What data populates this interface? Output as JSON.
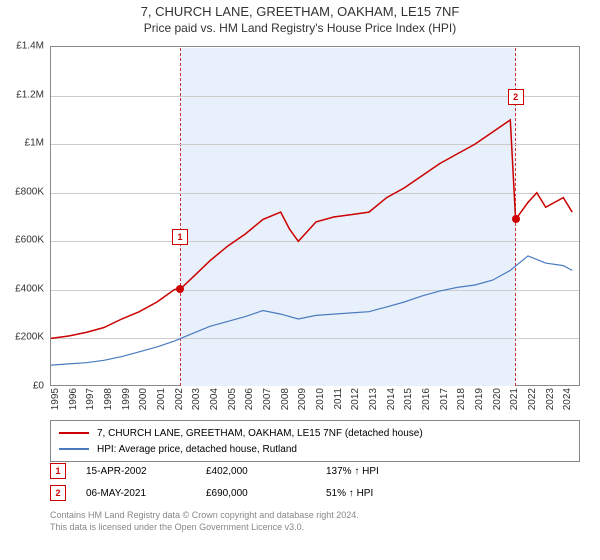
{
  "title": "7, CHURCH LANE, GREETHAM, OAKHAM, LE15 7NF",
  "subtitle": "Price paid vs. HM Land Registry's House Price Index (HPI)",
  "chart": {
    "type": "line",
    "background_color": "#ffffff",
    "grid_color": "#cccccc",
    "border_color": "#888888",
    "shade_color": "#e8f0fb",
    "shade_border": "#cc3333",
    "x_min": 1995,
    "x_max": 2025,
    "y_min": 0,
    "y_max": 1400000,
    "y_ticks": [
      0,
      200000,
      400000,
      600000,
      800000,
      1000000,
      1200000,
      1400000
    ],
    "y_tick_labels": [
      "£0",
      "£200K",
      "£400K",
      "£600K",
      "£800K",
      "£1M",
      "£1.2M",
      "£1.4M"
    ],
    "x_ticks": [
      1995,
      1996,
      1997,
      1998,
      1999,
      2000,
      2001,
      2002,
      2003,
      2004,
      2005,
      2006,
      2007,
      2008,
      2009,
      2010,
      2011,
      2012,
      2013,
      2014,
      2015,
      2016,
      2017,
      2018,
      2019,
      2020,
      2021,
      2022,
      2023,
      2024
    ],
    "shade_start": 2002.3,
    "shade_end": 2021.3,
    "series": [
      {
        "name": "property",
        "color": "#cc0000",
        "width": 1.5,
        "points": [
          [
            1995,
            200000
          ],
          [
            1996,
            210000
          ],
          [
            1997,
            225000
          ],
          [
            1998,
            245000
          ],
          [
            1999,
            280000
          ],
          [
            2000,
            310000
          ],
          [
            2001,
            350000
          ],
          [
            2002,
            402000
          ],
          [
            2002.3,
            402000
          ],
          [
            2003,
            450000
          ],
          [
            2004,
            520000
          ],
          [
            2005,
            580000
          ],
          [
            2006,
            630000
          ],
          [
            2007,
            690000
          ],
          [
            2008,
            720000
          ],
          [
            2008.5,
            650000
          ],
          [
            2009,
            600000
          ],
          [
            2009.5,
            640000
          ],
          [
            2010,
            680000
          ],
          [
            2011,
            700000
          ],
          [
            2012,
            710000
          ],
          [
            2013,
            720000
          ],
          [
            2014,
            780000
          ],
          [
            2015,
            820000
          ],
          [
            2016,
            870000
          ],
          [
            2017,
            920000
          ],
          [
            2018,
            960000
          ],
          [
            2019,
            1000000
          ],
          [
            2020,
            1050000
          ],
          [
            2021,
            1100000
          ],
          [
            2021.3,
            690000
          ],
          [
            2022,
            760000
          ],
          [
            2022.5,
            800000
          ],
          [
            2023,
            740000
          ],
          [
            2024,
            780000
          ],
          [
            2024.5,
            720000
          ]
        ]
      },
      {
        "name": "hpi",
        "color": "#4a7bc0",
        "width": 1.2,
        "points": [
          [
            1995,
            90000
          ],
          [
            1996,
            95000
          ],
          [
            1997,
            100000
          ],
          [
            1998,
            110000
          ],
          [
            1999,
            125000
          ],
          [
            2000,
            145000
          ],
          [
            2001,
            165000
          ],
          [
            2002,
            190000
          ],
          [
            2003,
            220000
          ],
          [
            2004,
            250000
          ],
          [
            2005,
            270000
          ],
          [
            2006,
            290000
          ],
          [
            2007,
            315000
          ],
          [
            2008,
            300000
          ],
          [
            2009,
            280000
          ],
          [
            2010,
            295000
          ],
          [
            2011,
            300000
          ],
          [
            2012,
            305000
          ],
          [
            2013,
            310000
          ],
          [
            2014,
            330000
          ],
          [
            2015,
            350000
          ],
          [
            2016,
            375000
          ],
          [
            2017,
            395000
          ],
          [
            2018,
            410000
          ],
          [
            2019,
            420000
          ],
          [
            2020,
            440000
          ],
          [
            2021,
            480000
          ],
          [
            2022,
            540000
          ],
          [
            2023,
            510000
          ],
          [
            2024,
            500000
          ],
          [
            2024.5,
            480000
          ]
        ]
      }
    ],
    "markers": [
      {
        "label": "1",
        "x": 2002.3,
        "y": 402000,
        "box_y_offset": -60
      },
      {
        "label": "2",
        "x": 2021.3,
        "y": 690000,
        "box_y_offset": -130
      }
    ],
    "marker_point_color": "#cc0000"
  },
  "legend": {
    "items": [
      {
        "color": "#cc0000",
        "label": "7, CHURCH LANE, GREETHAM, OAKHAM, LE15 7NF (detached house)"
      },
      {
        "color": "#4a7bc0",
        "label": "HPI: Average price, detached house, Rutland"
      }
    ]
  },
  "sales": [
    {
      "num": "1",
      "date": "15-APR-2002",
      "price": "£402,000",
      "hpi": "137% ↑ HPI"
    },
    {
      "num": "2",
      "date": "06-MAY-2021",
      "price": "£690,000",
      "hpi": "51% ↑ HPI"
    }
  ],
  "footer": {
    "line1": "Contains HM Land Registry data © Crown copyright and database right 2024.",
    "line2": "This data is licensed under the Open Government Licence v3.0."
  }
}
